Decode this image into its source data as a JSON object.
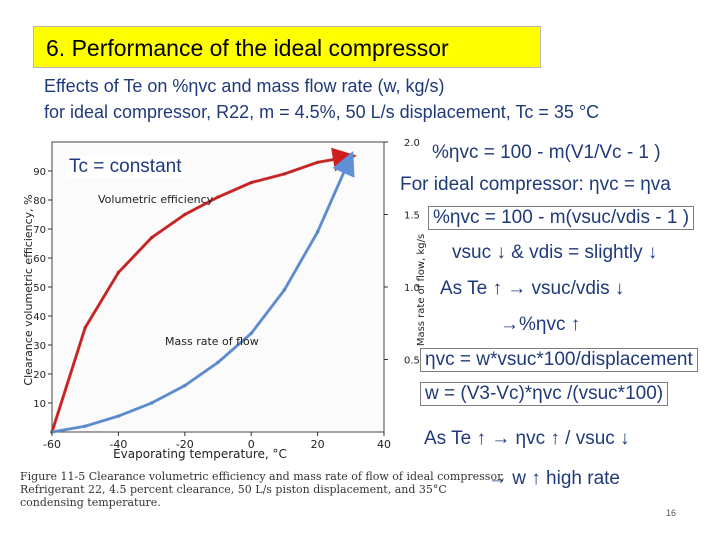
{
  "title": "6. Performance of the ideal compressor",
  "subtitle1": "Effects of Te  on %ηvc  and mass flow rate (w, kg/s)",
  "subtitle2": "for ideal compressor, R22, m = 4.5%, 50 L/s displacement, Tc = 35 °C",
  "equations": {
    "eq1": "%ηvc = 100 - m(V1/Vc - 1 )",
    "eq2": "For ideal compressor: ηvc = ηva",
    "eq3": "%ηvc = 100 - m(vsuc/vdis - 1 )",
    "eq4": "vsuc ↓ & vdis = slightly ↓",
    "eq5": "As Te ↑ → vsuc/vdis ↓",
    "eq6": "→%ηvc ↑",
    "eq7": "ηvc = w*vsuc*100/displacement",
    "eq8": "w = (V3-Vc)*ηvc /(vsuc*100)",
    "eq9": "As Te ↑ → ηvc ↑ / vsuc ↓",
    "eq10": "→ w ↑  high rate"
  },
  "figure_caption": "Figure 11-5  Clearance volumetric efficiency and mass rate of flow of ideal compressor, Refrigerant 22, 4.5 percent clearance, 50 L/s piston displacement, and 35°C condensing temperature.",
  "slide_number": "16",
  "colors": {
    "title_bg": "#ffff00",
    "text_blue": "#1f3a7a",
    "curve_red": "#cc1f1f",
    "curve_blue": "#5f8fd6"
  },
  "chart_data": {
    "type": "line",
    "xlabel": "Evaporating temperature, °C",
    "ylabel_left": "Clearance volumetric efficiency, %",
    "ylabel_right": "Mass rate of flow, kg/s",
    "xlim": [
      -60,
      40
    ],
    "ylim_left": [
      0,
      100
    ],
    "ylim_right": [
      0,
      2.0
    ],
    "x_ticks": [
      "-60",
      "-40",
      "-20",
      "0",
      "20",
      "40"
    ],
    "y_ticks_left": [
      "10",
      "20",
      "30",
      "40",
      "50",
      "60",
      "70",
      "80",
      "90"
    ],
    "y_ticks_right": [
      "0.5",
      "1.0",
      "1.5",
      "2.0"
    ],
    "annotation_tc": "Tc = constant",
    "series": [
      {
        "name": "Volumetric efficiency",
        "axis": "left",
        "x": [
          -60,
          -50,
          -40,
          -30,
          -20,
          -10,
          0,
          10,
          20,
          30
        ],
        "y": [
          0,
          36,
          55,
          67,
          75,
          81,
          86,
          89,
          93,
          95
        ]
      },
      {
        "name": "Mass rate of flow",
        "axis": "right",
        "x": [
          -60,
          -50,
          -40,
          -30,
          -20,
          -10,
          0,
          10,
          20,
          30
        ],
        "y": [
          0,
          0.04,
          0.11,
          0.2,
          0.32,
          0.48,
          0.68,
          0.98,
          1.38,
          1.9
        ]
      }
    ]
  }
}
